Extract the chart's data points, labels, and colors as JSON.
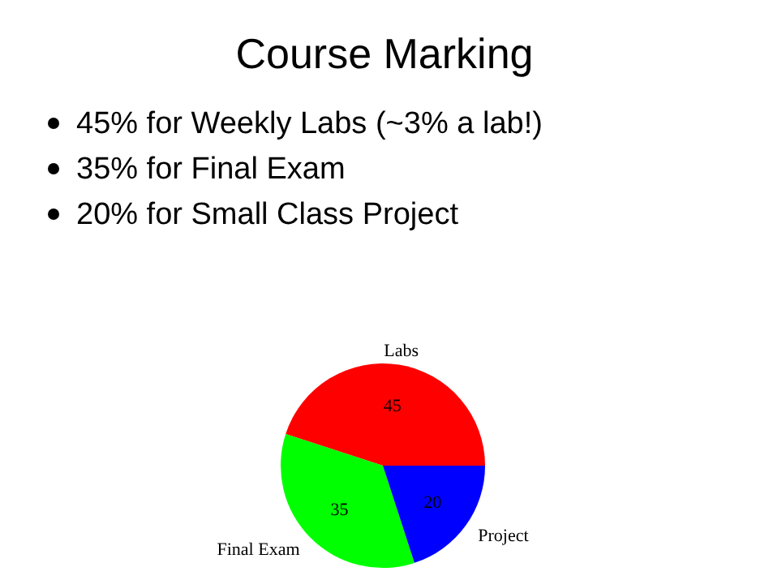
{
  "chart_data": {
    "type": "pie",
    "title": "Course Marking",
    "annotations": [
      "45% for Weekly Labs (~3% a lab!)",
      "35% for Final Exam",
      "20% for Small Class Project"
    ],
    "categories": [
      "Labs",
      "Final Exam",
      "Project"
    ],
    "values": [
      45,
      35,
      20
    ],
    "colors": [
      "#ff0000",
      "#00ff00",
      "#0000ff"
    ],
    "data_labels": true
  }
}
